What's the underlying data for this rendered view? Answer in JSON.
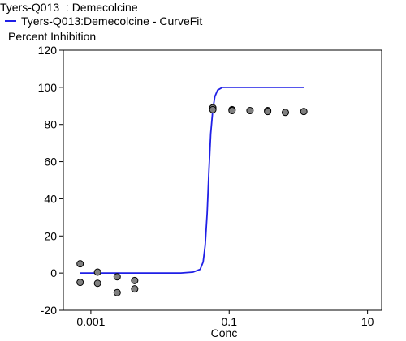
{
  "chart_data": {
    "type": "scatter",
    "title": "Tyers-Q013  : Demecolcine",
    "ylabel": "Percent Inhibition",
    "xlabel": "Conc",
    "xscale": "log",
    "xlim": [
      0.0004,
      16
    ],
    "ylim": [
      -20,
      120
    ],
    "y_ticks": [
      -20,
      0,
      20,
      40,
      60,
      80,
      100,
      120
    ],
    "x_ticks": [
      {
        "value": 0.001,
        "label": "0.001"
      },
      {
        "value": 0.1,
        "label": "0.1"
      },
      {
        "value": 10,
        "label": "10"
      }
    ],
    "legend": {
      "label": "Tyers-Q013:Demecolcine - CurveFit",
      "placement": "top-left"
    },
    "grid": false,
    "colors": {
      "curve": "#1f1fe6",
      "points": "#808080"
    },
    "points": [
      {
        "x": 0.0007,
        "y": 5
      },
      {
        "x": 0.0007,
        "y": -5
      },
      {
        "x": 0.00125,
        "y": 0.5
      },
      {
        "x": 0.00125,
        "y": -5.5
      },
      {
        "x": 0.0024,
        "y": -2
      },
      {
        "x": 0.0024,
        "y": -10.5
      },
      {
        "x": 0.0043,
        "y": -4
      },
      {
        "x": 0.0043,
        "y": -8.5
      },
      {
        "x": 0.058,
        "y": 89
      },
      {
        "x": 0.058,
        "y": 88
      },
      {
        "x": 0.11,
        "y": 88
      },
      {
        "x": 0.11,
        "y": 87.5
      },
      {
        "x": 0.2,
        "y": 87.5
      },
      {
        "x": 0.36,
        "y": 87.5
      },
      {
        "x": 0.36,
        "y": 87
      },
      {
        "x": 0.65,
        "y": 86.5
      },
      {
        "x": 1.2,
        "y": 87
      }
    ],
    "curve": {
      "name": "Tyers-Q013:Demecolcine - CurveFit",
      "x": [
        0.0007,
        0.005,
        0.02,
        0.03,
        0.038,
        0.042,
        0.045,
        0.048,
        0.051,
        0.054,
        0.058,
        0.062,
        0.068,
        0.08,
        0.12,
        0.5,
        1.2
      ],
      "y": [
        0,
        0,
        0,
        0.5,
        2,
        6,
        15,
        32,
        55,
        75,
        88,
        95,
        98.5,
        100,
        100,
        100,
        100
      ]
    }
  }
}
